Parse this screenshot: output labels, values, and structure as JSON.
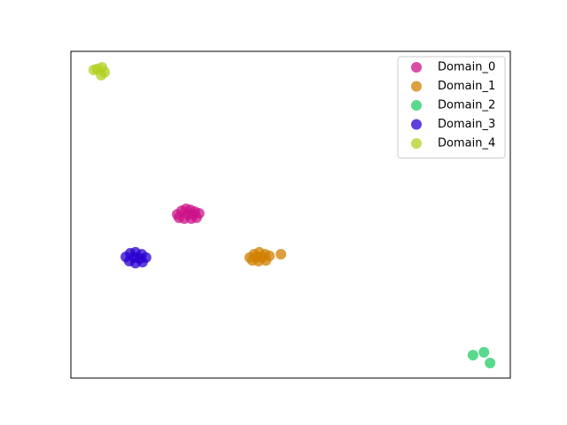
{
  "chart_data": {
    "type": "scatter",
    "legend": "upper right",
    "xlim": [
      0,
      100
    ],
    "ylim": [
      0,
      100
    ],
    "series": [
      {
        "name": "Domain_0",
        "color": "#cc1188",
        "x": [
          24.2,
          25.2,
          26.2,
          27.2,
          28.2,
          29.2,
          28.6,
          27.4,
          25.8,
          24.6,
          26.6,
          27.8
        ],
        "values": [
          50.1,
          51.2,
          51.8,
          51.5,
          50.9,
          50.4,
          49.1,
          48.8,
          48.8,
          49.1,
          50.1,
          50.1
        ]
      },
      {
        "name": "Domain_1",
        "color": "#d08000",
        "x": [
          40.7,
          41.7,
          42.9,
          44.2,
          45.2,
          44.4,
          42.7,
          41.3,
          42.3,
          43.5,
          47.8
        ],
        "values": [
          36.9,
          37.9,
          38.5,
          37.9,
          37.4,
          36.0,
          35.8,
          36.0,
          37.1,
          36.9,
          37.9
        ]
      },
      {
        "name": "Domain_2",
        "color": "#22cc66",
        "x": [
          91.5,
          94.0,
          95.4
        ],
        "values": [
          7.0,
          7.9,
          4.6
        ]
      },
      {
        "name": "Domain_3",
        "color": "#2a00d0",
        "x": [
          12.5,
          13.5,
          14.7,
          16.1,
          17.1,
          16.3,
          14.7,
          13.3,
          14.5,
          15.7
        ],
        "values": [
          37.1,
          38.2,
          38.5,
          37.9,
          36.9,
          35.5,
          35.2,
          35.8,
          36.9,
          36.6
        ]
      },
      {
        "name": "Domain_4",
        "color": "#b0d020",
        "x": [
          5.2,
          7.1,
          7.7,
          6.9,
          6.0
        ],
        "values": [
          94.3,
          95.1,
          93.6,
          92.7,
          94.6
        ]
      }
    ]
  }
}
